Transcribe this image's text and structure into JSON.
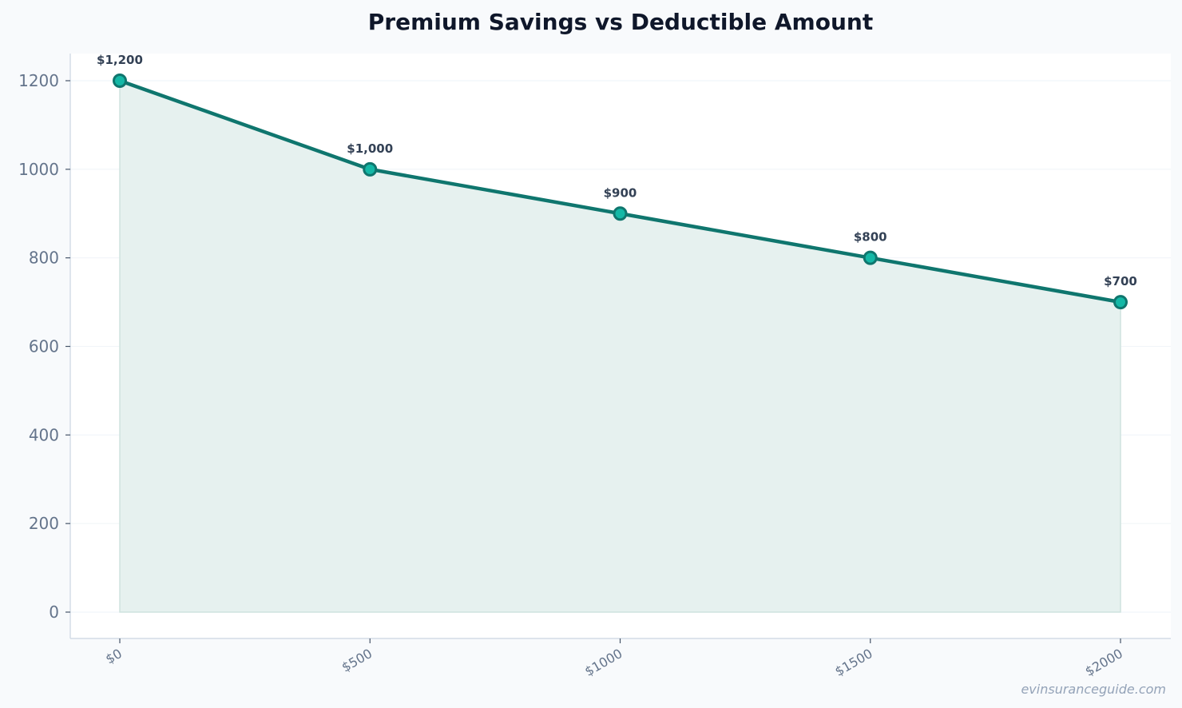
{
  "chart_data": {
    "type": "area",
    "title": "Premium Savings vs Deductible Amount",
    "xlabel": "",
    "ylabel": "",
    "categories": [
      "$0",
      "$500",
      "$1000",
      "$1500",
      "$2000"
    ],
    "values": [
      1200,
      1000,
      900,
      800,
      700
    ],
    "data_labels": [
      "$1,200",
      "$1,000",
      "$900",
      "$800",
      "$700"
    ],
    "ylim": [
      0,
      1200
    ],
    "yticks": [
      0,
      200,
      400,
      600,
      800,
      1000,
      1200
    ],
    "grid": true,
    "legend": "none",
    "colors": {
      "line": "#0f766e",
      "marker_fill": "#14b8a6",
      "area_fill": "#e6f1ef",
      "area_edge": "#cfe3df",
      "axis": "#cbd5e1",
      "grid": "#f1f5f9"
    }
  },
  "watermark": "evinsuranceguide.com"
}
